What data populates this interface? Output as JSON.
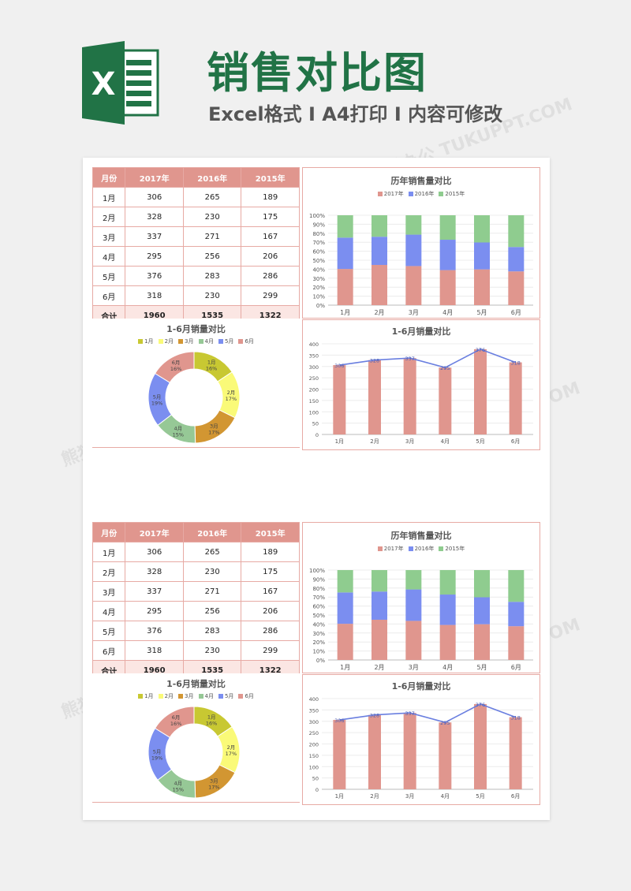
{
  "header": {
    "title": "销售对比图",
    "subtitle": "Excel格式 I A4打印 I 内容可修改",
    "logo_letter": "X",
    "accent": "#217346"
  },
  "watermark": "熊猫办公 TUKUPPT.COM",
  "table": {
    "headers": [
      "月份",
      "2017年",
      "2016年",
      "2015年"
    ],
    "rows": [
      [
        "1月",
        "306",
        "265",
        "189"
      ],
      [
        "2月",
        "328",
        "230",
        "175"
      ],
      [
        "3月",
        "337",
        "271",
        "167"
      ],
      [
        "4月",
        "295",
        "256",
        "206"
      ],
      [
        "5月",
        "376",
        "283",
        "286"
      ],
      [
        "6月",
        "318",
        "230",
        "299"
      ]
    ],
    "total": [
      "合计",
      "1960",
      "1535",
      "1322"
    ],
    "header_color": "#e0968e"
  },
  "chart_data": [
    {
      "type": "bar",
      "stacked": "percent",
      "title": "历年销售量对比",
      "categories": [
        "1月",
        "2月",
        "3月",
        "4月",
        "5月",
        "6月"
      ],
      "series": [
        {
          "name": "2017年",
          "color": "#e0968e",
          "values": [
            306,
            328,
            337,
            295,
            376,
            318
          ]
        },
        {
          "name": "2016年",
          "color": "#7b8ef0",
          "values": [
            265,
            230,
            271,
            256,
            283,
            230
          ]
        },
        {
          "name": "2015年",
          "color": "#8fcc8f",
          "values": [
            189,
            175,
            167,
            206,
            286,
            299
          ]
        }
      ],
      "y_ticks": [
        "0%",
        "10%",
        "20%",
        "30%",
        "40%",
        "50%",
        "60%",
        "70%",
        "80%",
        "90%",
        "100%"
      ],
      "legend": "top"
    },
    {
      "type": "pie",
      "donut": true,
      "title": "1-6月销量对比",
      "categories": [
        "1月",
        "2月",
        "3月",
        "4月",
        "5月",
        "6月"
      ],
      "values": [
        306,
        328,
        337,
        295,
        376,
        318
      ],
      "labels": [
        "16%",
        "17%",
        "17%",
        "15%",
        "19%",
        "16%"
      ],
      "colors": [
        "#c8c832",
        "#fafa78",
        "#d29632",
        "#96c896",
        "#7b8ef0",
        "#e0968e"
      ],
      "legend": "top"
    },
    {
      "type": "bar",
      "overlay_line": true,
      "title": "1-6月销量对比",
      "categories": [
        "1月",
        "2月",
        "3月",
        "4月",
        "5月",
        "6月"
      ],
      "values": [
        306,
        328,
        337,
        295,
        376,
        318
      ],
      "bar_color": "#e0968e",
      "line_color": "#6a7fe0",
      "ylim": [
        0,
        400
      ],
      "y_ticks": [
        0,
        50,
        100,
        150,
        200,
        250,
        300,
        350,
        400
      ]
    }
  ]
}
